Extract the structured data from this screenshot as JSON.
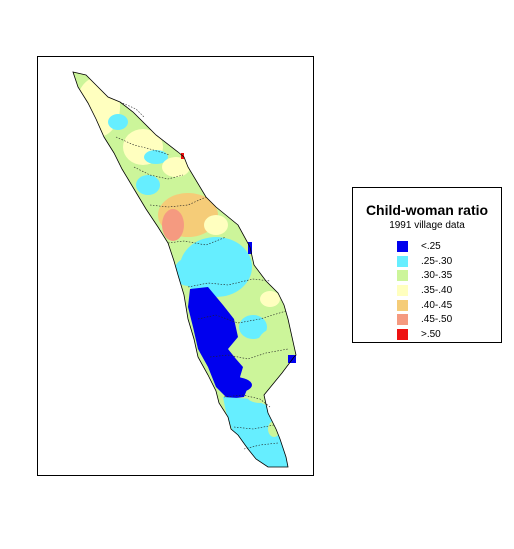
{
  "legend": {
    "title": "Child-woman ratio",
    "subtitle": "1991 village data",
    "items": [
      {
        "label": "<.25",
        "color": "#0000ee"
      },
      {
        "label": ".25-.30",
        "color": "#66eeff"
      },
      {
        "label": ".30-.35",
        "color": "#ccf59a"
      },
      {
        "label": ".35-.40",
        "color": "#ffffbf"
      },
      {
        "label": ".40-.45",
        "color": "#f5cc78"
      },
      {
        "label": ".45-.50",
        "color": "#f59a80"
      },
      {
        "label": ">.50",
        "color": "#ee1111"
      }
    ]
  }
}
